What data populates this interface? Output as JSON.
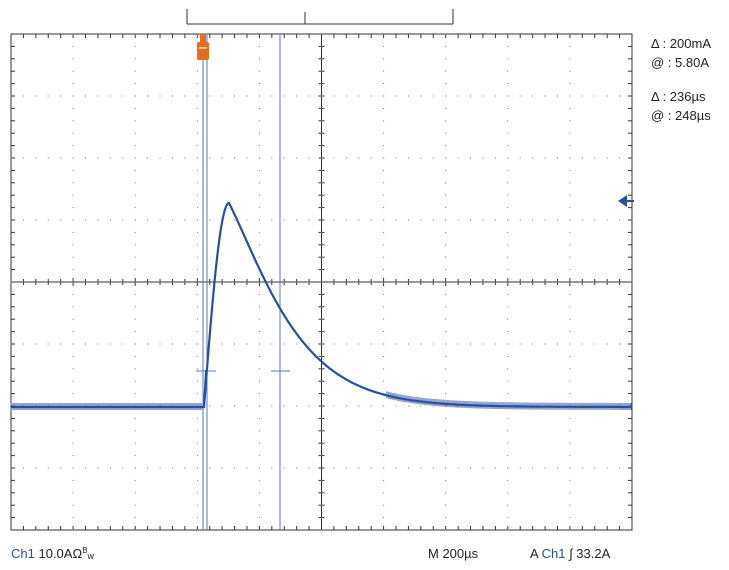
{
  "readouts": {
    "amp_delta": "Δ : 200mA",
    "amp_at": "@ : 5.80A",
    "time_delta": "Δ : 236µs",
    "time_at": "@ : 248µs"
  },
  "status_bar": {
    "ch1_label": "Ch1",
    "ch1_scale": "10.0A",
    "ch1_omega": "Ω",
    "ch1_sup": "B",
    "ch1_sub": "w",
    "timebase": "M 200µs",
    "trigger_prefix": "A",
    "trigger_channel": "Ch1",
    "trigger_symbol": "∫",
    "trigger_level": "33.2A"
  },
  "colors": {
    "trace": "#2b4ea0",
    "cursor": "#5577c8",
    "trigger_marker": "#e07020",
    "graticule": "#333333"
  },
  "icons": {
    "trigger_position_marker": "orange-T-marker",
    "trigger_level_marker": "left-arrow-icon"
  }
}
